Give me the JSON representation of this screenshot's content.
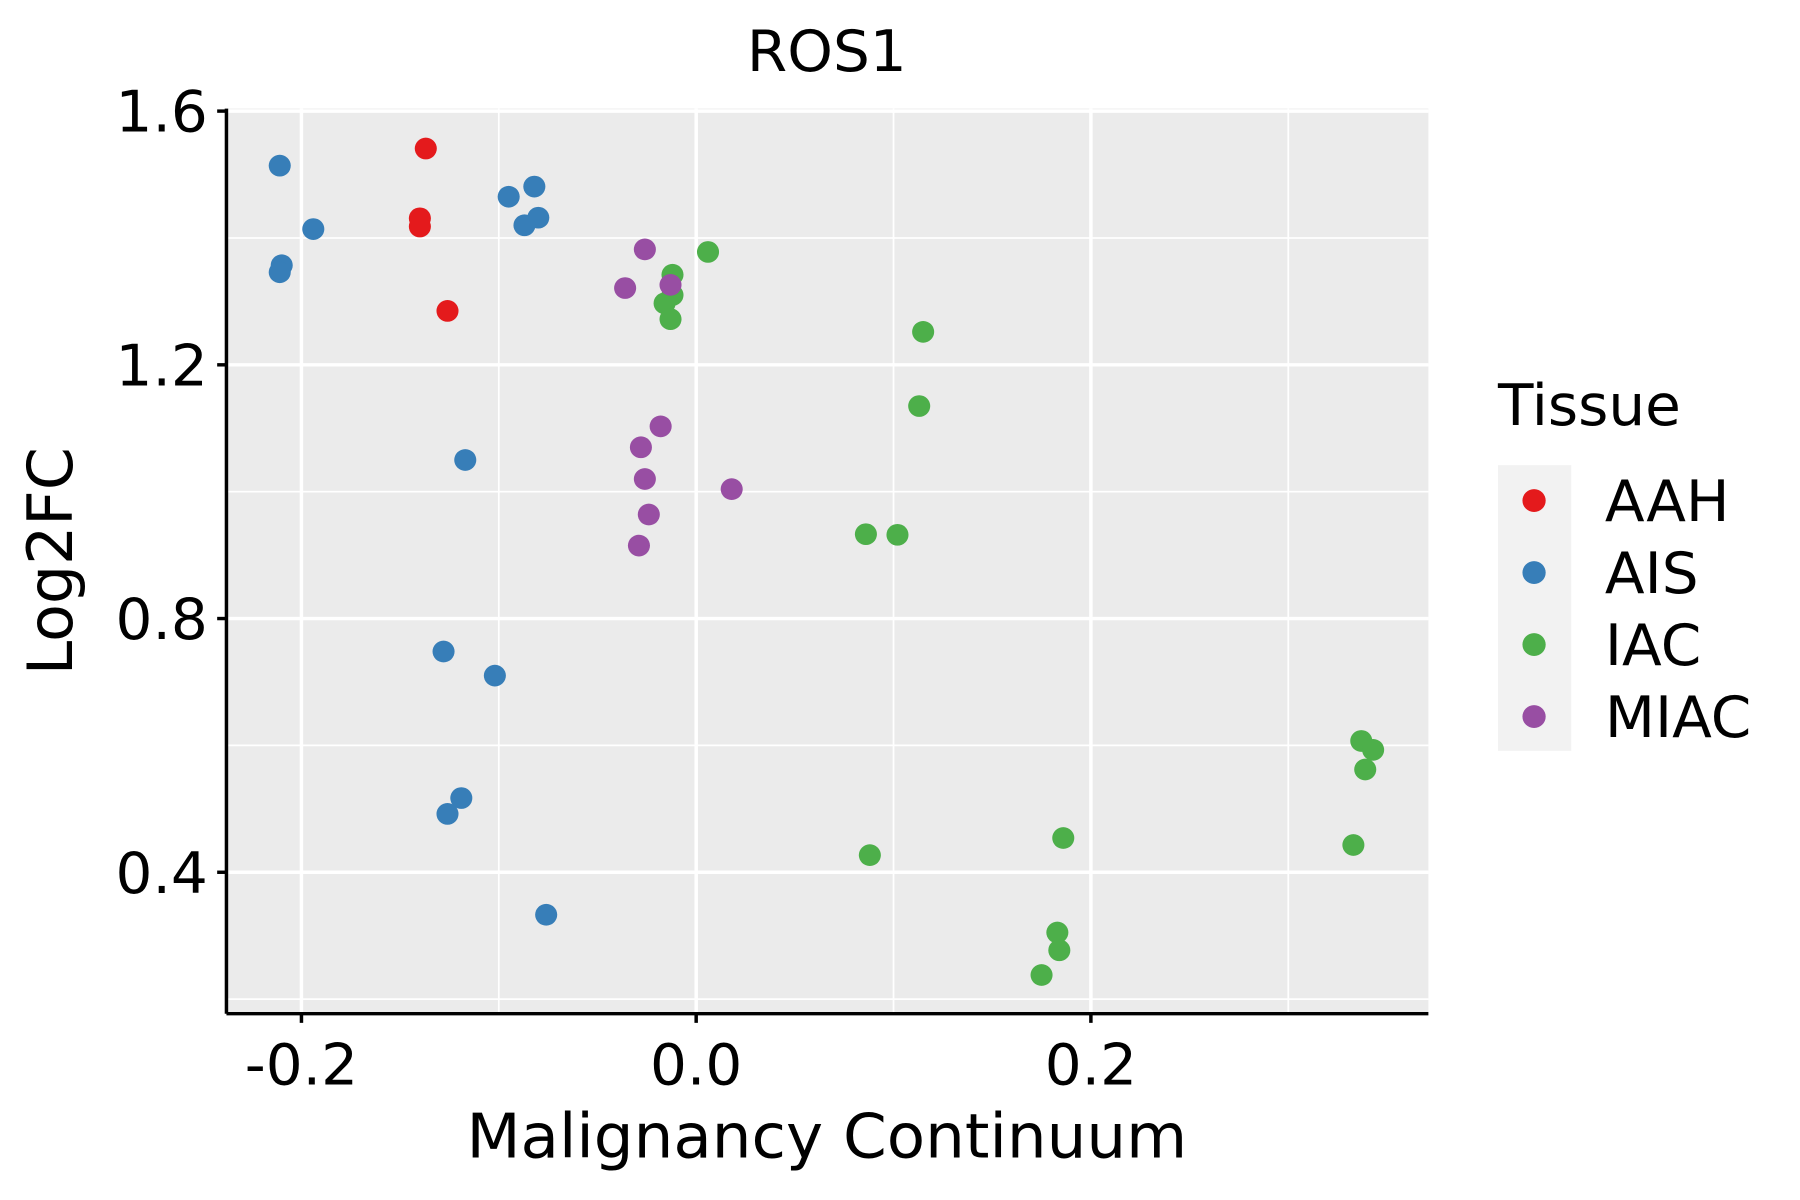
{
  "chart_data": {
    "type": "scatter",
    "title": "ROS1",
    "xlabel": "Malignancy Continuum",
    "ylabel": "Log2FC",
    "xlim": [
      -0.238,
      0.371
    ],
    "ylim": [
      0.177,
      1.604
    ],
    "xticks": [
      {
        "value": -0.2,
        "label": "-0.2"
      },
      {
        "value": 0.0,
        "label": "0.0"
      },
      {
        "value": 0.2,
        "label": "0.2"
      }
    ],
    "xminor": [
      -0.1,
      0.1,
      0.3
    ],
    "yticks": [
      {
        "value": 0.4,
        "label": "0.4"
      },
      {
        "value": 0.8,
        "label": "0.8"
      },
      {
        "value": 1.2,
        "label": "1.2"
      },
      {
        "value": 1.6,
        "label": "1.6"
      }
    ],
    "yminor": [
      0.2,
      0.6,
      1.0,
      1.4
    ],
    "grid": true,
    "legend": {
      "title": "Tissue",
      "placement": "right"
    },
    "series": [
      {
        "name": "AAH",
        "color": "#E41A1C",
        "points": [
          [
            -0.137,
            1.541
          ],
          [
            -0.14,
            1.431
          ],
          [
            -0.14,
            1.418
          ],
          [
            -0.126,
            1.285
          ]
        ]
      },
      {
        "name": "AIS",
        "color": "#377EB8",
        "points": [
          [
            -0.211,
            1.514
          ],
          [
            -0.194,
            1.414
          ],
          [
            -0.21,
            1.357
          ],
          [
            -0.211,
            1.346
          ],
          [
            -0.095,
            1.465
          ],
          [
            -0.082,
            1.481
          ],
          [
            -0.08,
            1.432
          ],
          [
            -0.087,
            1.42
          ],
          [
            -0.117,
            1.05
          ],
          [
            -0.128,
            0.748
          ],
          [
            -0.102,
            0.71
          ],
          [
            -0.119,
            0.517
          ],
          [
            -0.126,
            0.492
          ],
          [
            -0.076,
            0.333
          ]
        ]
      },
      {
        "name": "IAC",
        "color": "#4DAF4A",
        "points": [
          [
            0.006,
            1.378
          ],
          [
            -0.012,
            1.342
          ],
          [
            -0.012,
            1.31
          ],
          [
            -0.016,
            1.297
          ],
          [
            -0.013,
            1.272
          ],
          [
            0.115,
            1.252
          ],
          [
            0.113,
            1.135
          ],
          [
            0.086,
            0.933
          ],
          [
            0.102,
            0.932
          ],
          [
            0.088,
            0.427
          ],
          [
            0.186,
            0.454
          ],
          [
            0.183,
            0.305
          ],
          [
            0.184,
            0.277
          ],
          [
            0.175,
            0.238
          ],
          [
            0.337,
            0.607
          ],
          [
            0.343,
            0.593
          ],
          [
            0.339,
            0.562
          ],
          [
            0.333,
            0.443
          ]
        ]
      },
      {
        "name": "MIAC",
        "color": "#984EA3",
        "points": [
          [
            -0.026,
            1.382
          ],
          [
            -0.036,
            1.321
          ],
          [
            -0.013,
            1.326
          ],
          [
            -0.018,
            1.103
          ],
          [
            -0.028,
            1.07
          ],
          [
            -0.026,
            1.02
          ],
          [
            0.018,
            1.004
          ],
          [
            -0.024,
            0.964
          ],
          [
            -0.029,
            0.915
          ]
        ]
      }
    ]
  }
}
